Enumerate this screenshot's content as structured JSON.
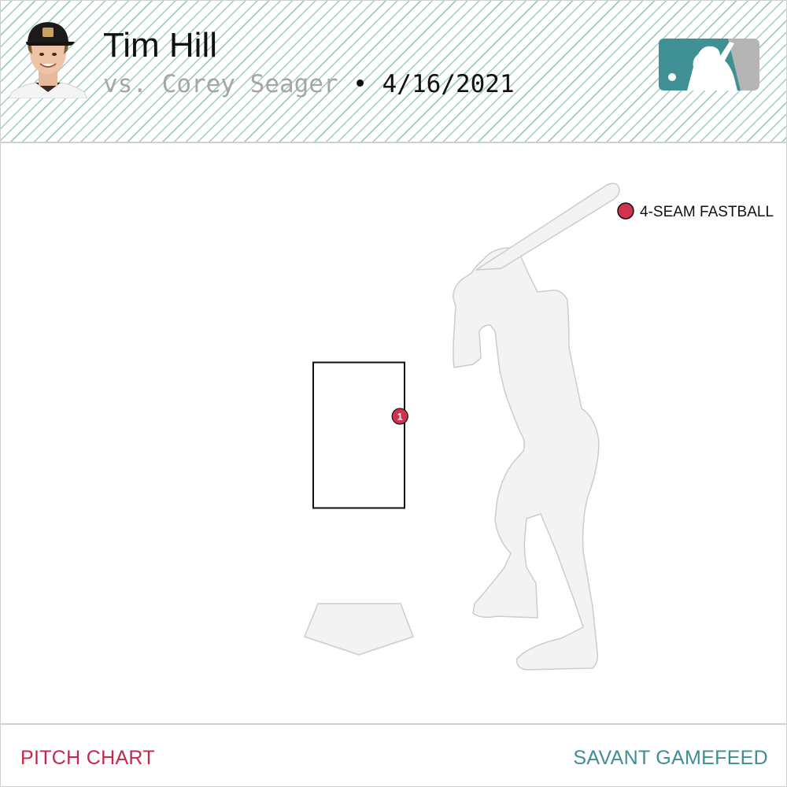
{
  "header": {
    "pitcher_name": "Tim Hill",
    "batter_text": "vs. Corey Seager",
    "separator": "•",
    "date": "4/16/2021"
  },
  "colors": {
    "pitch_4seam": "#d0324f",
    "logo_teal": "#3f9196",
    "logo_gray": "#b5b5b5",
    "footer_left": "#c5284e",
    "footer_right": "#3f8d98"
  },
  "chart_data": {
    "type": "scatter",
    "pitches": [
      {
        "number": "1",
        "pitch_type": "4-SEAM FASTBALL",
        "x": 0.9,
        "y": 0.63
      }
    ],
    "legend": [
      {
        "label": "4-SEAM FASTBALL",
        "color": "#d0324f"
      }
    ],
    "strike_zone": {
      "x_range": [
        -1.0,
        1.0
      ],
      "y_range": [
        0,
        1
      ]
    }
  },
  "footer": {
    "left_label": "PITCH CHART",
    "right_label": "SAVANT GAMEFEED"
  }
}
